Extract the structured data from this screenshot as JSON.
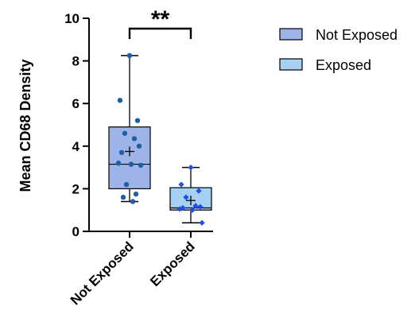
{
  "chart_data": {
    "type": "box",
    "ylabel": "Mean CD68 Density",
    "ylim": [
      0,
      10
    ],
    "yticks": [
      0,
      2,
      4,
      6,
      8,
      10
    ],
    "categories": [
      "Not Exposed",
      "Exposed"
    ],
    "series": [
      {
        "name": "Not Exposed",
        "fill": "#9eb4e8",
        "point_color": "#1f5fa0",
        "point_shape": "circle",
        "min": 1.4,
        "q1": 2.0,
        "median": 3.15,
        "q3": 4.9,
        "max": 8.25,
        "mean": 3.75,
        "points": [
          8.25,
          6.15,
          5.2,
          4.6,
          4.35,
          4.0,
          3.7,
          3.2,
          3.15,
          3.1,
          2.2,
          1.75,
          1.6,
          1.4
        ]
      },
      {
        "name": "Exposed",
        "fill": "#a6d1f2",
        "point_color": "#1f4fe6",
        "point_shape": "diamond",
        "min": 0.4,
        "q1": 1.0,
        "median": 1.1,
        "q3": 2.05,
        "max": 3.0,
        "mean": 1.45,
        "points": [
          3.0,
          2.2,
          1.9,
          1.6,
          1.2,
          1.15,
          1.1,
          1.05,
          1.0,
          0.4
        ]
      }
    ],
    "significance": {
      "label": "**",
      "between": [
        0,
        1
      ]
    },
    "legend": {
      "position": "top-right",
      "items": [
        {
          "label": "Not Exposed",
          "color": "#9eb4e8"
        },
        {
          "label": "Exposed",
          "color": "#a6d1f2"
        }
      ]
    }
  }
}
